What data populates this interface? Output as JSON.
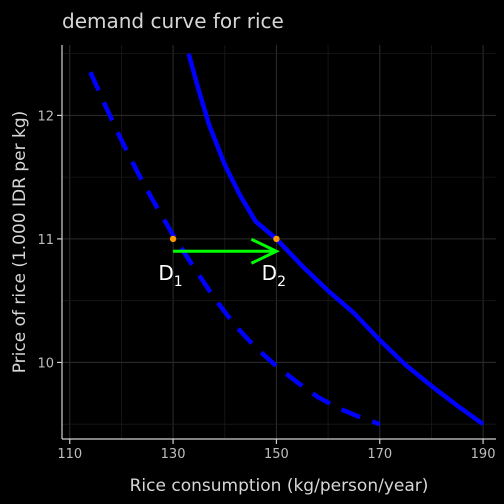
{
  "chart_data": {
    "type": "line",
    "title": "demand curve for rice",
    "xlabel": "Rice consumption (kg/person/year)",
    "ylabel": "Price of rice (1.000 IDR per kg)",
    "xlim": [
      108.5,
      192.5
    ],
    "ylim": [
      9.38,
      12.57
    ],
    "xticks": [
      110,
      130,
      150,
      170,
      190
    ],
    "yticks": [
      10,
      11,
      12
    ],
    "grid": true,
    "series": [
      {
        "style": "dashed",
        "color": "#0000ff",
        "x": [
          114,
          117,
          120,
          123,
          126,
          130,
          134,
          138,
          142,
          146,
          150,
          154,
          158,
          162,
          166,
          170
        ],
        "y": [
          12.35,
          12.07,
          11.8,
          11.55,
          11.32,
          11.03,
          10.77,
          10.52,
          10.3,
          10.12,
          9.97,
          9.84,
          9.72,
          9.63,
          9.56,
          9.5
        ]
      },
      {
        "style": "solid",
        "color": "#0000ff",
        "x": [
          133,
          135,
          137,
          140,
          143,
          146,
          150,
          155,
          160,
          165,
          170,
          175,
          180,
          185,
          190
        ],
        "y": [
          12.5,
          12.2,
          11.92,
          11.6,
          11.35,
          11.14,
          11.0,
          10.78,
          10.58,
          10.4,
          10.18,
          9.98,
          9.81,
          9.65,
          9.5
        ]
      }
    ],
    "points": [
      {
        "x": 130,
        "y": 11,
        "color": "#ff9900"
      },
      {
        "x": 150,
        "y": 11,
        "color": "#ff9900"
      }
    ],
    "arrow": {
      "x_start": 130,
      "x_end": 150,
      "y": 10.9,
      "color": "#00ff00"
    },
    "annotations": [
      {
        "label": "D",
        "sub": "1",
        "x": 129.5,
        "y": 10.7
      },
      {
        "label": "D",
        "sub": "2",
        "x": 149.5,
        "y": 10.7
      }
    ]
  }
}
